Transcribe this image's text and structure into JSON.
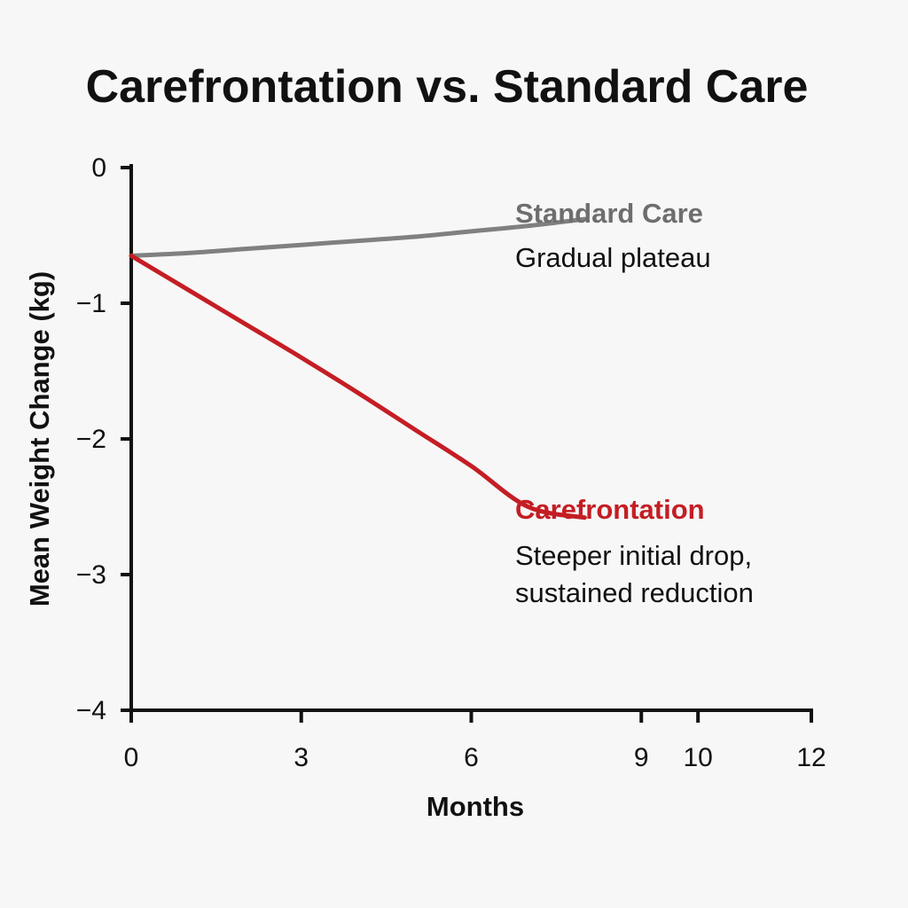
{
  "chart_data": {
    "type": "line",
    "title": "Carefrontation vs. Standard Care",
    "xlabel": "Months",
    "ylabel": "Mean Weight Change (kg)",
    "xlim": [
      0,
      12
    ],
    "ylim": [
      -4,
      0
    ],
    "xticks": [
      0,
      3,
      6,
      9,
      10,
      12
    ],
    "xtick_labels": [
      "0",
      "3",
      "6",
      "9",
      "10",
      "12"
    ],
    "yticks": [
      0,
      -1,
      -2,
      -3,
      -4
    ],
    "ytick_labels": [
      "0",
      "−1",
      "−2",
      "−3",
      "−4"
    ],
    "grid": false,
    "series": [
      {
        "name": "Standard Care",
        "note": "Gradual plateau",
        "color": "#808080",
        "x": [
          0,
          1,
          2,
          3,
          4,
          5,
          6,
          7,
          8
        ],
        "y": [
          -0.65,
          -0.63,
          -0.6,
          -0.57,
          -0.54,
          -0.51,
          -0.47,
          -0.43,
          -0.38
        ]
      },
      {
        "name": "Carefrontation",
        "note_lines": [
          "Steeper initial drop,",
          "sustained reduction"
        ],
        "color": "#c41e24",
        "x": [
          0,
          1,
          2,
          3,
          4,
          5,
          6,
          7,
          8
        ],
        "y": [
          -0.65,
          -0.9,
          -1.15,
          -1.4,
          -1.66,
          -1.93,
          -2.2,
          -2.5,
          -2.58
        ]
      }
    ]
  }
}
